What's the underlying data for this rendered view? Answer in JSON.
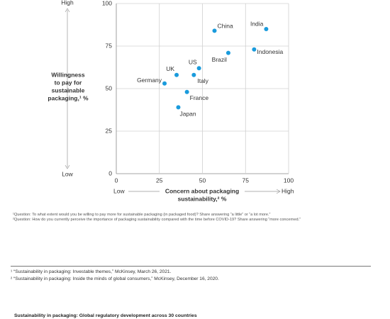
{
  "chart_data": {
    "type": "scatter",
    "point_labels": [
      "China",
      "India",
      "Brazil",
      "Indonesia",
      "US",
      "UK",
      "Italy",
      "Germany",
      "France",
      "Japan"
    ],
    "x": [
      57,
      87,
      65,
      80,
      48,
      35,
      45,
      28,
      41,
      36
    ],
    "values": [
      84,
      85,
      71,
      73,
      62,
      58,
      58,
      53,
      48,
      39
    ],
    "color": "#1a9bdc",
    "xlim": [
      0,
      100
    ],
    "xticks": [
      0,
      25,
      50,
      75,
      100
    ],
    "ylim": [
      0,
      100
    ],
    "yticks": [
      0,
      25,
      50,
      75,
      100
    ],
    "grid": true,
    "y_label": [
      "Willingness",
      "to pay for",
      "sustainable",
      "packaging,¹ %"
    ],
    "x_label": [
      "Concern about packaging",
      "sustainability,² %"
    ],
    "y_low": "Low",
    "y_high": "High",
    "x_low": "Low",
    "x_high": "High"
  },
  "footnotes": [
    "¹Question: To what extent would you be willing to pay more for sustainable packaging (in packaged food)? Share answering “a little” or “a lot more.”",
    "²Question: How do you currently perceive the importance of packaging sustainability compared with the time before COVID-19? Share answering “more concerned.”"
  ],
  "references": [
    "¹ “Sustainability in packaging: Investable themes,” McKinsey, March 26, 2021.",
    "² “Sustainability in packaging: Inside the minds of global consumers,” McKinsey, December 16, 2020."
  ],
  "next_heading": "Sustainability in packaging: Global regulatory development across 30 countries"
}
